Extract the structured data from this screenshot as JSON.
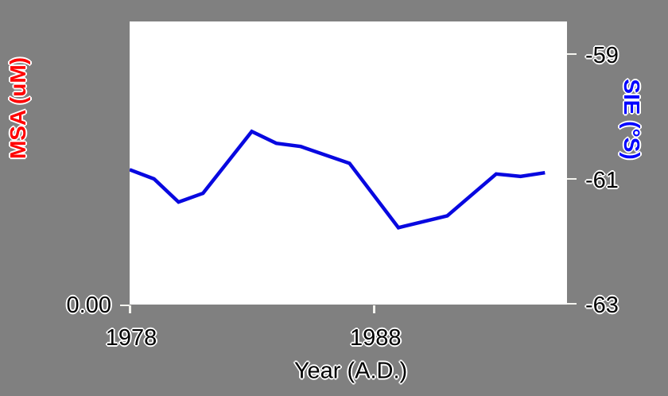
{
  "chart_data": {
    "type": "line",
    "title": "",
    "xlabel": "Year (A.D.)",
    "left_axis": {
      "title": "MSA (uM)",
      "title_color": "#ff0000",
      "ticks": [
        {
          "label": "0.00",
          "position": "bottom"
        }
      ]
    },
    "right_axis": {
      "title": "SIE (°S)",
      "title_color": "#0000ff",
      "range_top": -58.48,
      "range_bottom": -63.01,
      "ticks": [
        {
          "value": -59,
          "label": "-59"
        },
        {
          "value": -61,
          "label": "-61"
        },
        {
          "value": -63,
          "label": "-63"
        }
      ]
    },
    "x_axis": {
      "range": [
        1978,
        1995.9
      ],
      "ticks": [
        {
          "value": 1978,
          "label": "1978"
        },
        {
          "value": 1988,
          "label": "1988"
        }
      ]
    },
    "series": [
      {
        "name": "SIE",
        "axis": "right",
        "color": "#0808e0",
        "line_width": 4.5,
        "x": [
          1978,
          1979,
          1980,
          1981,
          1983,
          1984,
          1985,
          1987,
          1989,
          1991,
          1993,
          1994,
          1995
        ],
        "y": [
          -60.85,
          -61.0,
          -61.37,
          -61.23,
          -60.24,
          -60.43,
          -60.48,
          -60.75,
          -61.78,
          -61.59,
          -60.92,
          -60.96,
          -60.9
        ]
      }
    ],
    "legend": "none",
    "grid": "off",
    "colors": {
      "background": "#808080",
      "plot_background": "#ffffff",
      "tick_mark": "#f5f5f0",
      "tick_label": "#000000",
      "halo": "#ffffff"
    }
  }
}
